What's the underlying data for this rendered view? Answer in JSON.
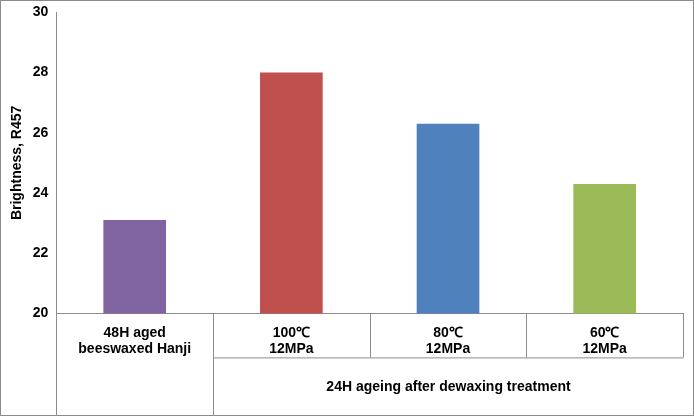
{
  "chart_data": {
    "type": "bar",
    "y_label": "Brightness, R457",
    "categories": [
      "48H aged\nbeeswaxed Hanji",
      "100℃\n12MPa",
      "80℃\n12MPa",
      "60℃\n12MPa"
    ],
    "values": [
      23.1,
      28.0,
      26.3,
      24.3
    ],
    "colors": [
      "#8064a2",
      "#c0504d",
      "#4f81bd",
      "#9bbb59"
    ],
    "ylim": [
      20,
      30
    ],
    "yticks": [
      20,
      22,
      24,
      26,
      28,
      30
    ],
    "grid": false,
    "annotations": [
      {
        "text": "24H ageing after dewaxing treatment",
        "categories": [
          "100℃\n12MPa",
          "80℃\n12MPa",
          "60℃\n12MPa"
        ]
      }
    ]
  }
}
